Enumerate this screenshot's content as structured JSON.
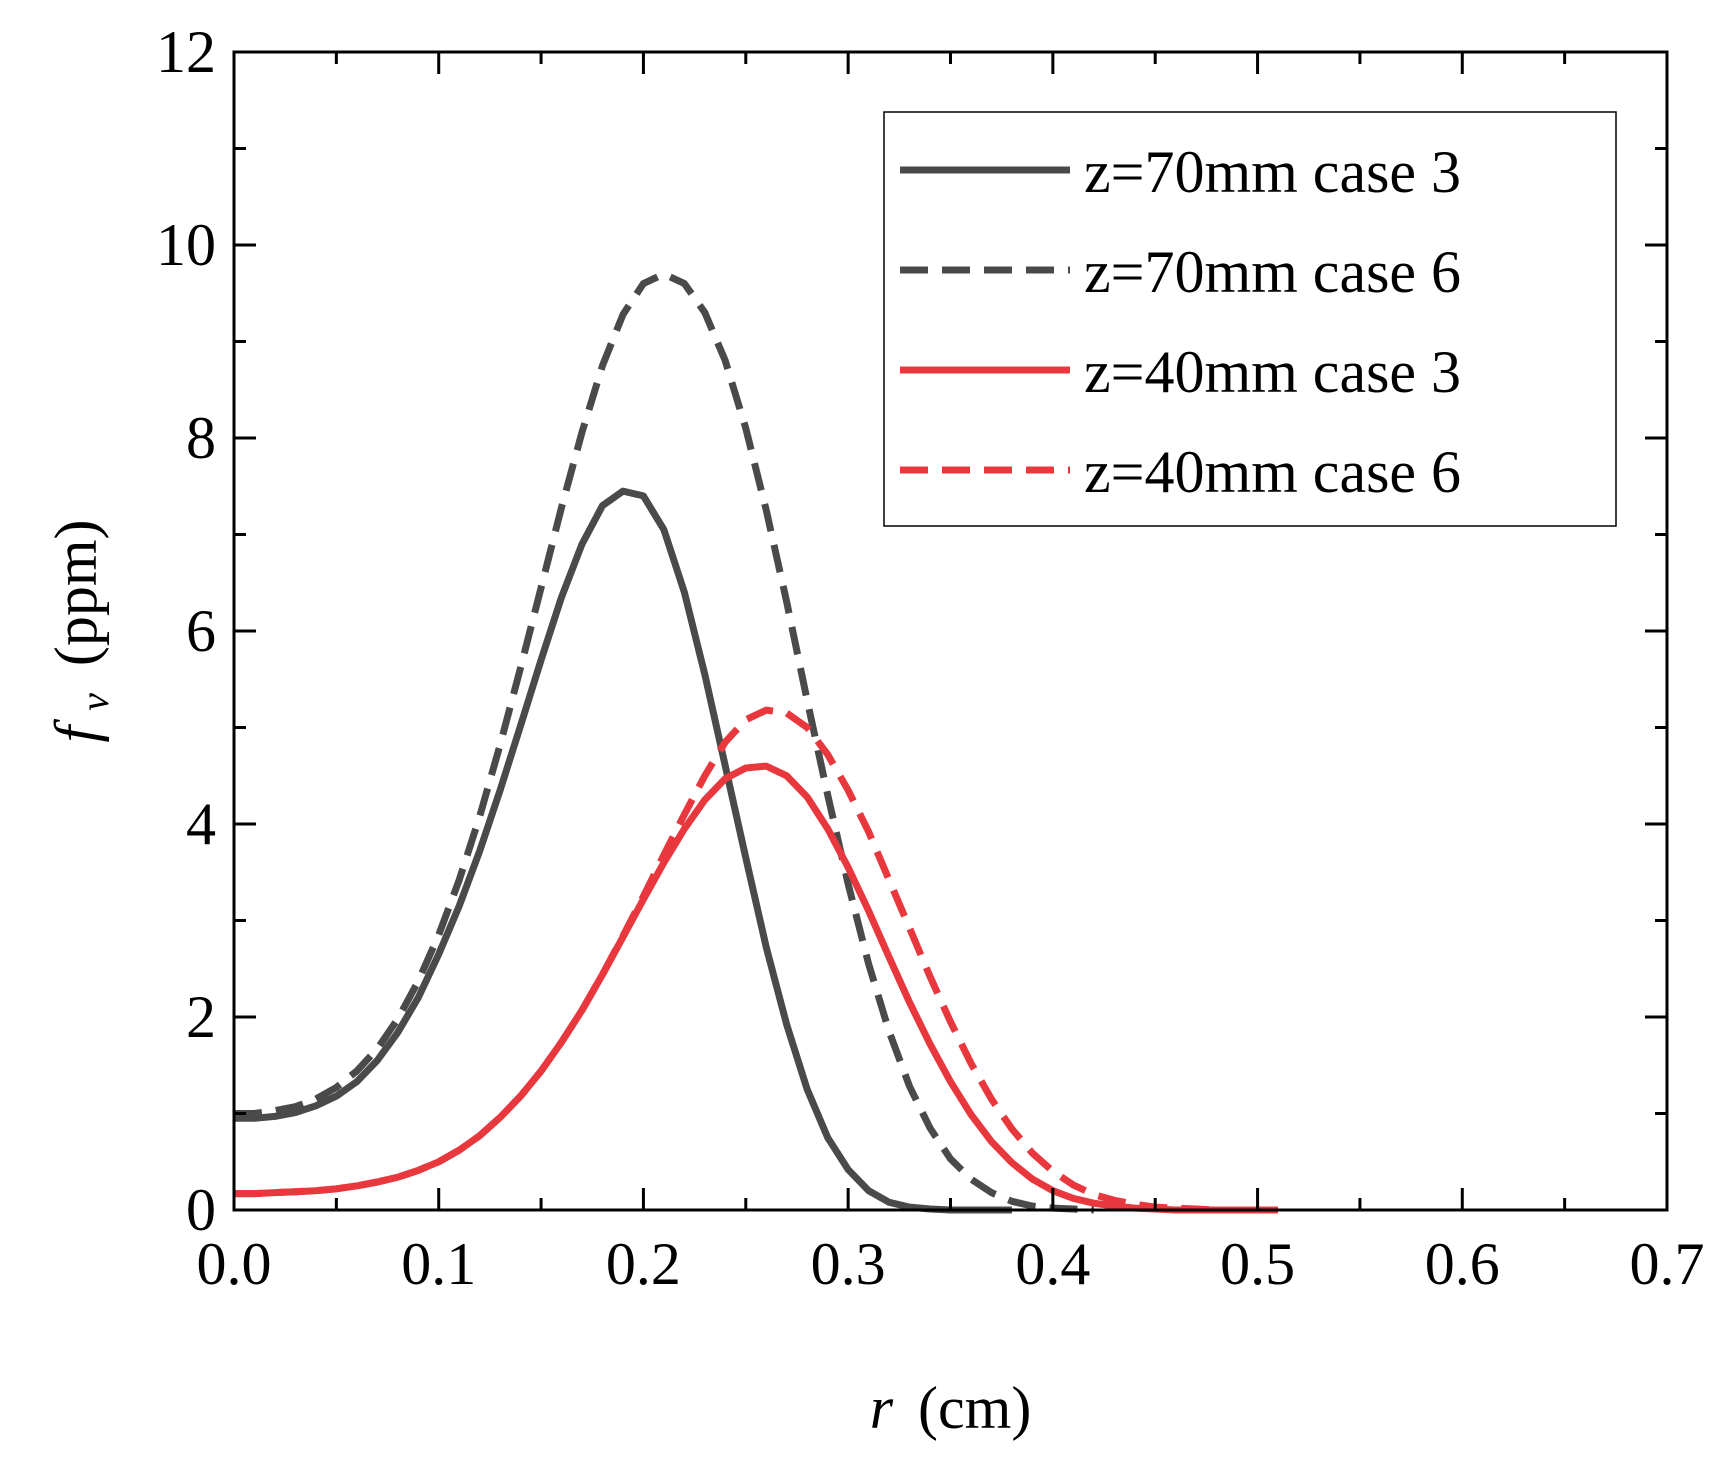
{
  "chart_data": {
    "type": "line",
    "title": "",
    "xlabel": {
      "var": "r",
      "unit": "(cm)"
    },
    "ylabel": {
      "var": "f",
      "sub": "v",
      "unit": "(ppm)"
    },
    "xlim": [
      0,
      0.7
    ],
    "ylim": [
      0,
      12
    ],
    "xticks": [
      0.0,
      0.1,
      0.2,
      0.3,
      0.4,
      0.5,
      0.6,
      0.7
    ],
    "xtick_labels": [
      "0.0",
      "0.1",
      "0.2",
      "0.3",
      "0.4",
      "0.5",
      "0.6",
      "0.7"
    ],
    "yticks": [
      0,
      2,
      4,
      6,
      8,
      10,
      12
    ],
    "ytick_labels": [
      "0",
      "2",
      "4",
      "6",
      "8",
      "10",
      "12"
    ],
    "grid": false,
    "legend_position": "top-right",
    "series": [
      {
        "name": "z=70mm case 3",
        "color": "#4a4a4a",
        "dash": "solid",
        "x": [
          0,
          0.01,
          0.02,
          0.03,
          0.04,
          0.05,
          0.06,
          0.07,
          0.08,
          0.09,
          0.1,
          0.11,
          0.12,
          0.13,
          0.14,
          0.15,
          0.16,
          0.17,
          0.18,
          0.19,
          0.2,
          0.21,
          0.22,
          0.23,
          0.24,
          0.25,
          0.26,
          0.27,
          0.28,
          0.29,
          0.3,
          0.31,
          0.32,
          0.33,
          0.34,
          0.35,
          0.36,
          0.37,
          0.38
        ],
        "y": [
          0.95,
          0.95,
          0.97,
          1.01,
          1.08,
          1.18,
          1.33,
          1.55,
          1.84,
          2.2,
          2.65,
          3.15,
          3.72,
          4.35,
          5.02,
          5.7,
          6.35,
          6.9,
          7.3,
          7.45,
          7.4,
          7.05,
          6.4,
          5.55,
          4.6,
          3.65,
          2.72,
          1.92,
          1.25,
          0.75,
          0.42,
          0.2,
          0.08,
          0.03,
          0.01,
          0.0,
          0.0,
          0.0,
          0.0
        ]
      },
      {
        "name": "z=70mm case 6",
        "color": "#4a4a4a",
        "dash": "dashed",
        "x": [
          0,
          0.01,
          0.02,
          0.03,
          0.04,
          0.05,
          0.06,
          0.07,
          0.08,
          0.09,
          0.1,
          0.11,
          0.12,
          0.13,
          0.14,
          0.15,
          0.16,
          0.17,
          0.18,
          0.19,
          0.2,
          0.21,
          0.22,
          0.23,
          0.24,
          0.25,
          0.26,
          0.27,
          0.28,
          0.29,
          0.3,
          0.31,
          0.32,
          0.33,
          0.34,
          0.35,
          0.36,
          0.37,
          0.38,
          0.39,
          0.4,
          0.41,
          0.42
        ],
        "y": [
          1.0,
          1.0,
          1.03,
          1.07,
          1.15,
          1.27,
          1.44,
          1.67,
          1.98,
          2.37,
          2.85,
          3.42,
          4.08,
          4.82,
          5.62,
          6.45,
          7.28,
          8.06,
          8.75,
          9.28,
          9.6,
          9.7,
          9.6,
          9.3,
          8.8,
          8.1,
          7.25,
          6.3,
          5.28,
          4.3,
          3.38,
          2.55,
          1.85,
          1.28,
          0.85,
          0.53,
          0.32,
          0.18,
          0.09,
          0.04,
          0.02,
          0.01,
          0.0
        ]
      },
      {
        "name": "z=40mm case 3",
        "color": "#e8383d",
        "dash": "solid",
        "x": [
          0,
          0.01,
          0.02,
          0.03,
          0.04,
          0.05,
          0.06,
          0.07,
          0.08,
          0.09,
          0.1,
          0.11,
          0.12,
          0.13,
          0.14,
          0.15,
          0.16,
          0.17,
          0.18,
          0.19,
          0.2,
          0.21,
          0.22,
          0.23,
          0.24,
          0.25,
          0.26,
          0.27,
          0.28,
          0.29,
          0.3,
          0.31,
          0.32,
          0.33,
          0.34,
          0.35,
          0.36,
          0.37,
          0.38,
          0.39,
          0.4,
          0.41,
          0.42,
          0.43,
          0.44,
          0.45,
          0.46,
          0.47,
          0.48,
          0.49,
          0.5,
          0.51
        ],
        "y": [
          0.17,
          0.17,
          0.18,
          0.19,
          0.2,
          0.22,
          0.25,
          0.29,
          0.34,
          0.41,
          0.5,
          0.62,
          0.77,
          0.96,
          1.18,
          1.44,
          1.74,
          2.07,
          2.44,
          2.83,
          3.22,
          3.6,
          3.95,
          4.25,
          4.47,
          4.58,
          4.6,
          4.5,
          4.28,
          3.95,
          3.55,
          3.1,
          2.62,
          2.15,
          1.72,
          1.33,
          0.99,
          0.71,
          0.49,
          0.32,
          0.2,
          0.12,
          0.07,
          0.04,
          0.02,
          0.01,
          0.0,
          0.0,
          0.0,
          0.0,
          0.0,
          0.0
        ]
      },
      {
        "name": "z=40mm case 6",
        "color": "#e8383d",
        "dash": "dashed",
        "x": [
          0,
          0.01,
          0.02,
          0.03,
          0.04,
          0.05,
          0.06,
          0.07,
          0.08,
          0.09,
          0.1,
          0.11,
          0.12,
          0.13,
          0.14,
          0.15,
          0.16,
          0.17,
          0.18,
          0.19,
          0.2,
          0.21,
          0.22,
          0.23,
          0.24,
          0.25,
          0.26,
          0.27,
          0.28,
          0.29,
          0.3,
          0.31,
          0.32,
          0.33,
          0.34,
          0.35,
          0.36,
          0.37,
          0.38,
          0.39,
          0.4,
          0.41,
          0.42,
          0.43,
          0.44,
          0.45,
          0.46,
          0.47,
          0.48,
          0.49,
          0.5,
          0.51
        ],
        "y": [
          0.17,
          0.17,
          0.18,
          0.19,
          0.2,
          0.22,
          0.25,
          0.29,
          0.34,
          0.41,
          0.5,
          0.62,
          0.77,
          0.96,
          1.18,
          1.44,
          1.74,
          2.07,
          2.44,
          2.84,
          3.25,
          3.68,
          4.1,
          4.5,
          4.85,
          5.08,
          5.18,
          5.15,
          5.0,
          4.72,
          4.35,
          3.92,
          3.42,
          2.92,
          2.42,
          1.95,
          1.52,
          1.15,
          0.84,
          0.59,
          0.4,
          0.26,
          0.16,
          0.1,
          0.06,
          0.03,
          0.02,
          0.01,
          0.0,
          0.0,
          0.0,
          0.0
        ]
      }
    ]
  }
}
